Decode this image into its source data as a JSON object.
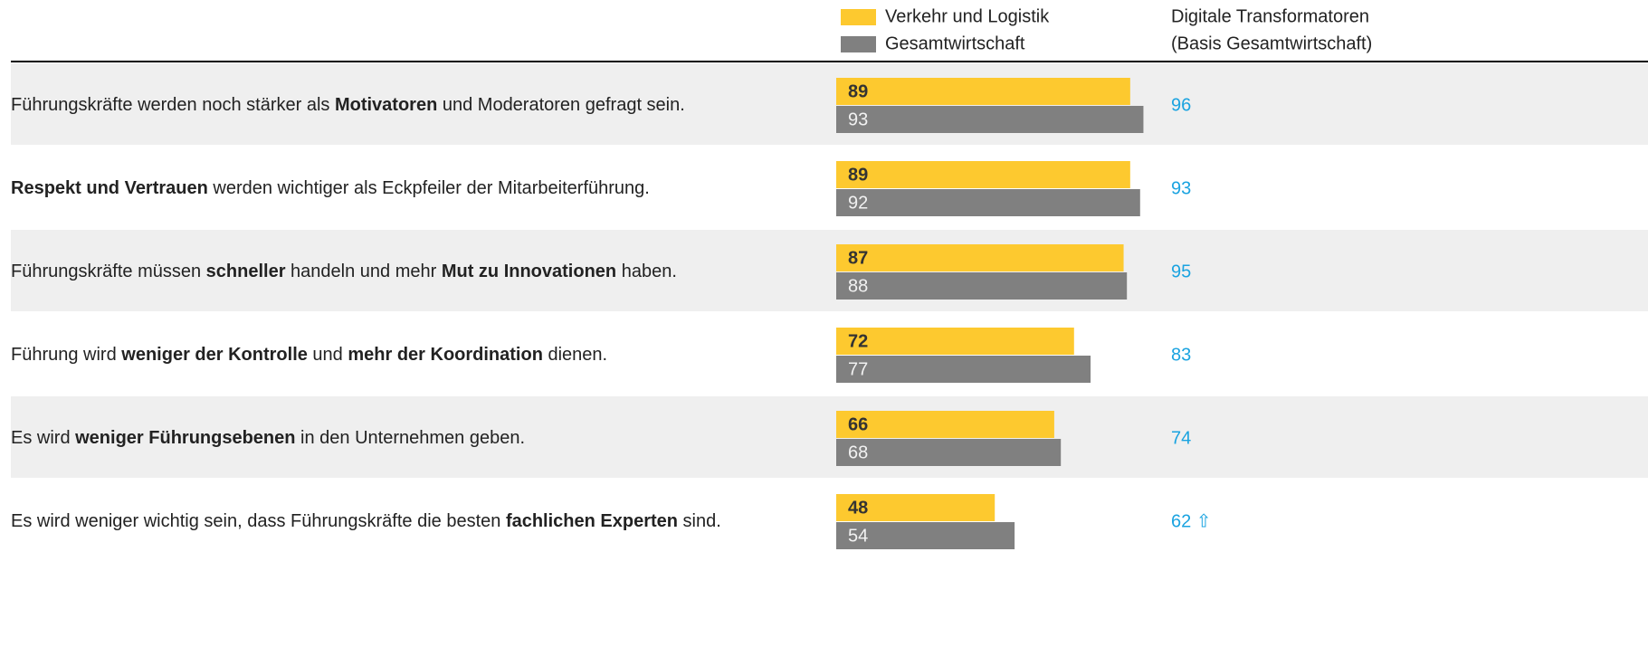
{
  "chart_data": {
    "type": "bar",
    "orientation": "horizontal",
    "categories": [
      [
        {
          "text": "Führungskräfte werden noch stärker als ",
          "bold": false
        },
        {
          "text": "Motivatoren",
          "bold": true
        },
        {
          "text": " und Moderatoren gefragt sein.",
          "bold": false
        }
      ],
      [
        {
          "text": "Respekt und Vertrauen",
          "bold": true
        },
        {
          "text": " werden wichtiger als Eckpfeiler der Mitarbeiterführung.",
          "bold": false
        }
      ],
      [
        {
          "text": "Führungskräfte müssen ",
          "bold": false
        },
        {
          "text": "schneller",
          "bold": true
        },
        {
          "text": " handeln und mehr ",
          "bold": false
        },
        {
          "text": "Mut zu Innovationen",
          "bold": true
        },
        {
          "text": " haben.",
          "bold": false
        }
      ],
      [
        {
          "text": "Führung wird ",
          "bold": false
        },
        {
          "text": "weniger der Kontrolle",
          "bold": true
        },
        {
          "text": " und ",
          "bold": false
        },
        {
          "text": "mehr der Koordination",
          "bold": true
        },
        {
          "text": " dienen.",
          "bold": false
        }
      ],
      [
        {
          "text": "Es wird ",
          "bold": false
        },
        {
          "text": "weniger Führungsebenen",
          "bold": true
        },
        {
          "text": " in den Unternehmen geben.",
          "bold": false
        }
      ],
      [
        {
          "text": "Es wird weniger wichtig sein, dass Führungskräfte die besten ",
          "bold": false
        },
        {
          "text": "fachlichen Experten",
          "bold": true
        },
        {
          "text": " sind.",
          "bold": false
        }
      ]
    ],
    "series": [
      {
        "name": "Verkehr und Logistik",
        "color": "#fdc92f",
        "values": [
          89,
          89,
          87,
          72,
          66,
          48
        ]
      },
      {
        "name": "Gesamtwirtschaft",
        "color": "#808080",
        "values": [
          93,
          92,
          88,
          77,
          68,
          54
        ]
      }
    ],
    "side_column": {
      "title": [
        "Digitale Transformatoren",
        "(Basis Gesamtwirtschaft)"
      ],
      "color": "#1aa3e0",
      "values": [
        96,
        93,
        95,
        83,
        74,
        62
      ],
      "value_labels": [
        "96",
        "93",
        "95",
        "83",
        "74",
        "62 ⇧"
      ]
    },
    "xlim": [
      0,
      100
    ]
  }
}
